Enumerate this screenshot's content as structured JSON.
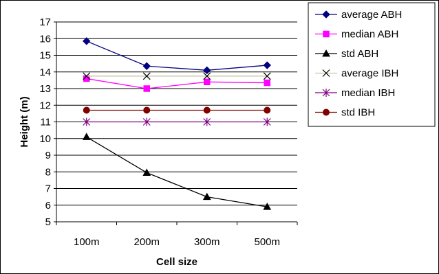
{
  "chart_data": {
    "type": "line",
    "categories": [
      "100m",
      "200m",
      "300m",
      "500m"
    ],
    "xlabel": "Cell size",
    "ylabel": "Height (m)",
    "ylim": [
      5,
      17
    ],
    "ytick_step": 1,
    "grid": "horizontal",
    "legend_position": "top-right",
    "series": [
      {
        "name": "average ABH",
        "values": [
          15.85,
          14.35,
          14.1,
          14.4
        ],
        "color": "#000080",
        "marker": "diamond"
      },
      {
        "name": "median ABH",
        "values": [
          13.6,
          13.0,
          13.4,
          13.35
        ],
        "color": "#ff00ff",
        "marker": "square"
      },
      {
        "name": "std ABH",
        "values": [
          10.1,
          7.95,
          6.5,
          5.9
        ],
        "color": "#000000",
        "marker": "triangle"
      },
      {
        "name": "average IBH",
        "values": [
          13.75,
          13.75,
          13.75,
          13.75
        ],
        "color": "#c8c8a0",
        "marker": "x",
        "markerColor": "#000000"
      },
      {
        "name": "median IBH",
        "values": [
          11.0,
          11.0,
          11.0,
          11.0
        ],
        "color": "#800080",
        "marker": "star"
      },
      {
        "name": "std IBH",
        "values": [
          11.7,
          11.7,
          11.7,
          11.7
        ],
        "color": "#800000",
        "marker": "circle"
      }
    ]
  }
}
